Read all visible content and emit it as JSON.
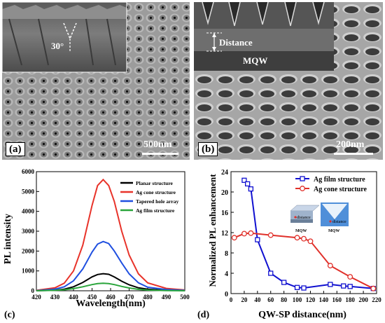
{
  "panel_a": {
    "label": "(a)",
    "inset_angle": "30°",
    "scale": "500nm"
  },
  "panel_b": {
    "label": "(b)",
    "inset_distance": "Distance",
    "inset_mqw": "MQW",
    "scale": "200nm"
  },
  "panel_c": {
    "label": "(c)"
  },
  "panel_d": {
    "label": "(d)",
    "inset_distance_1": "distance",
    "inset_distance_2": "distance",
    "inset_mqw_1": "MQW",
    "inset_mqw_2": "MQW"
  },
  "colors": {
    "black": "#000000",
    "red": "#e8332a",
    "blue": "#1f4fe0",
    "green": "#2aa53b",
    "blue_d": "#1010d0",
    "red_d": "#e0302a"
  },
  "chart_data": [
    {
      "type": "line",
      "xlabel": "Wavelength(nm)",
      "ylabel": "PL intensity",
      "xlim": [
        420,
        500
      ],
      "ylim": [
        0,
        6000
      ],
      "xticks": [
        420,
        430,
        440,
        450,
        460,
        470,
        480,
        490,
        500
      ],
      "yticks": [
        0,
        1000,
        2000,
        3000,
        4000,
        5000,
        6000
      ],
      "x": [
        420,
        430,
        435,
        440,
        445,
        450,
        453,
        456,
        459,
        462,
        466,
        470,
        475,
        480,
        490,
        500
      ],
      "series": [
        {
          "name": "Planar structure",
          "color": "#000000",
          "values": [
            5,
            30,
            80,
            200,
            420,
            700,
            820,
            860,
            830,
            700,
            480,
            300,
            150,
            80,
            30,
            10
          ]
        },
        {
          "name": "Ag cone structure",
          "color": "#e8332a",
          "values": [
            20,
            150,
            380,
            1000,
            2300,
            4300,
            5300,
            5600,
            5300,
            4500,
            3000,
            1800,
            850,
            400,
            120,
            40
          ]
        },
        {
          "name": "Tapered hole array",
          "color": "#1f4fe0",
          "values": [
            10,
            80,
            200,
            500,
            1100,
            1950,
            2350,
            2480,
            2380,
            2000,
            1400,
            850,
            400,
            180,
            60,
            20
          ]
        },
        {
          "name": "Ag film structure",
          "color": "#2aa53b",
          "values": [
            5,
            20,
            50,
            110,
            200,
            310,
            360,
            380,
            360,
            310,
            220,
            140,
            70,
            35,
            10,
            5
          ]
        }
      ],
      "legend": "top-right"
    },
    {
      "type": "line",
      "xlabel": "QW-SP distance(nm)",
      "ylabel": "Normalized PL enhancement",
      "xlim": [
        0,
        220
      ],
      "ylim": [
        0,
        24
      ],
      "xticks": [
        0,
        20,
        40,
        60,
        80,
        100,
        120,
        140,
        160,
        180,
        200,
        220
      ],
      "yticks": [
        0,
        4,
        8,
        12,
        16,
        20,
        24
      ],
      "series": [
        {
          "name": "Ag film structure",
          "color": "#1010d0",
          "marker": "square",
          "x": [
            20,
            25,
            30,
            40,
            60,
            80,
            100,
            110,
            150,
            170,
            180,
            215
          ],
          "values": [
            22.3,
            21.6,
            20.6,
            10.6,
            4.0,
            2.2,
            1.2,
            1.1,
            1.8,
            1.5,
            1.4,
            1.0
          ]
        },
        {
          "name": "Ag cone structure",
          "color": "#e0302a",
          "marker": "circle",
          "x": [
            5,
            20,
            30,
            60,
            100,
            110,
            120,
            150,
            180,
            215
          ],
          "values": [
            11.0,
            11.8,
            11.9,
            11.5,
            11.0,
            10.8,
            10.3,
            5.5,
            3.3,
            1.0
          ]
        }
      ],
      "legend": "top-right"
    }
  ]
}
